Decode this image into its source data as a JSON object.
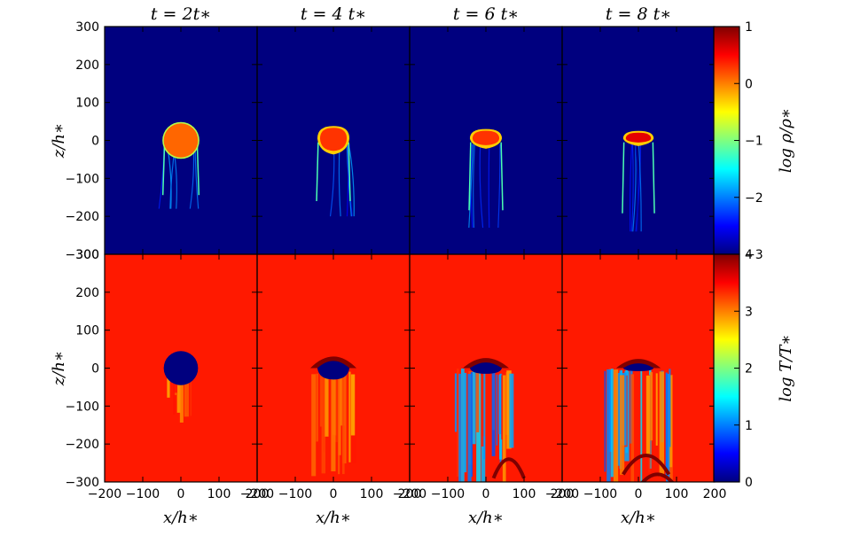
{
  "chart_data": {
    "type": "heatmap",
    "panel_titles": [
      "t = 2t∗",
      "t = 4 t∗",
      "t = 6 t∗",
      "t = 8 t∗"
    ],
    "rows": [
      {
        "quantity": "density",
        "ylabel": "z/h∗",
        "colorbar_label": "log ρ/ρ∗",
        "colorbar_range": [
          -3,
          1
        ],
        "colorbar_ticks": [
          1,
          0,
          -1,
          -2,
          -3
        ],
        "colorbar_tick_labels": [
          "1",
          "0",
          "−1",
          "−2",
          "−3"
        ],
        "background_level": -3,
        "cloud_level": 0.1
      },
      {
        "quantity": "temperature",
        "ylabel": "z/h∗",
        "colorbar_label": "log T/T∗",
        "colorbar_range": [
          0,
          4
        ],
        "colorbar_ticks": [
          4,
          3,
          2,
          1,
          0
        ],
        "colorbar_tick_labels": [
          "4",
          "3",
          "2",
          "1",
          "0"
        ],
        "background_level": 3.4,
        "cloud_level": 0
      }
    ],
    "x_range": [
      -200,
      200
    ],
    "z_range": [
      -300,
      300
    ],
    "xlabel": "x/h∗",
    "x_ticks": [
      -200,
      -100,
      0,
      100,
      200
    ],
    "x_tick_labels": [
      "−200",
      "−100",
      "0",
      "100",
      "200"
    ],
    "z_ticks": [
      300,
      200,
      100,
      0,
      -100,
      -200,
      -300
    ],
    "z_tick_labels": [
      "300",
      "200",
      "100",
      "0",
      "−100",
      "−200",
      "−300"
    ],
    "colormap": "jet",
    "colormap_stops": [
      "#00007f",
      "#0000ff",
      "#007fff",
      "#00ffff",
      "#7fff7f",
      "#ffff00",
      "#ff7f00",
      "#ff0000",
      "#7f0000"
    ]
  }
}
